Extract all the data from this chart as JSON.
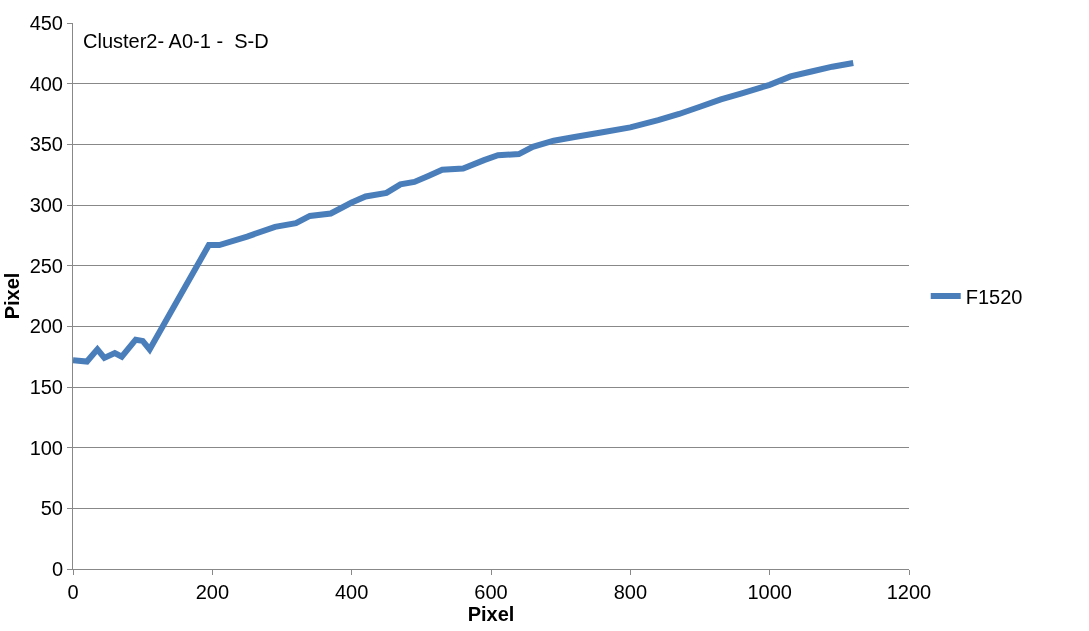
{
  "chart_data": {
    "type": "line",
    "title": "Cluster2- A0-1 -  S-D",
    "xlabel": "Pixel",
    "ylabel": "Pixel",
    "xlim": [
      0,
      1200
    ],
    "xticks": [
      0,
      200,
      400,
      600,
      800,
      1000,
      1200
    ],
    "ylim": [
      0,
      450
    ],
    "yticks": [
      0,
      50,
      100,
      150,
      200,
      250,
      300,
      350,
      400,
      450
    ],
    "grid": "y",
    "legend": "right",
    "marker": "none",
    "line_style": "solid",
    "series": [
      {
        "name": "F1520",
        "color": "#4a7ebb",
        "x": [
          0,
          20,
          35,
          45,
          60,
          70,
          90,
          100,
          110,
          195,
          210,
          250,
          290,
          320,
          340,
          370,
          400,
          420,
          450,
          470,
          490,
          510,
          530,
          560,
          590,
          610,
          640,
          660,
          690,
          720,
          760,
          800,
          840,
          870,
          900,
          930,
          960,
          1000,
          1030,
          1060,
          1090,
          1120
        ],
        "values": [
          172,
          171,
          181,
          174,
          178,
          175,
          189,
          188,
          181,
          267,
          267,
          274,
          282,
          285,
          291,
          293,
          302,
          307,
          310,
          317,
          319,
          324,
          329,
          330,
          337,
          341,
          342,
          348,
          353,
          356,
          360,
          364,
          370,
          375,
          381,
          387,
          392,
          399,
          406,
          410,
          414,
          417
        ]
      }
    ]
  }
}
